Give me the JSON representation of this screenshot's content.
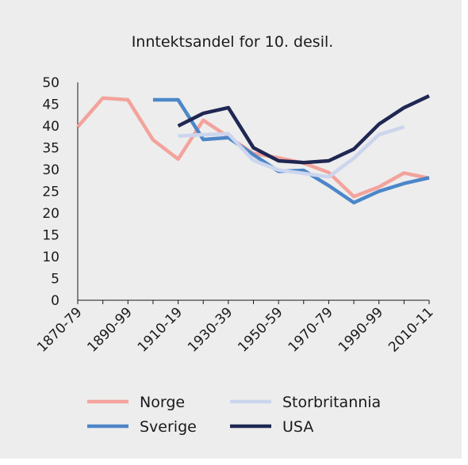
{
  "chart_data": {
    "type": "line",
    "title": "Inntektsandel for 10. desil.",
    "xlabel": "",
    "ylabel": "",
    "ylim": [
      0,
      50
    ],
    "yticks": [
      0,
      5,
      10,
      15,
      20,
      25,
      30,
      35,
      40,
      45,
      50
    ],
    "categories": [
      "1870-79",
      "1880-89",
      "1890-99",
      "1900-09",
      "1910-19",
      "1920-29",
      "1930-39",
      "1940-49",
      "1950-59",
      "1960-69",
      "1970-79",
      "1980-89",
      "1990-99",
      "2000-09",
      "2010-11"
    ],
    "xtick_labels": [
      "1870-79",
      "",
      "1890-99",
      "",
      "1910-19",
      "",
      "1930-39",
      "",
      "1950-59",
      "",
      "1970-79",
      "",
      "1990-99",
      "",
      "2010-11"
    ],
    "legend_position": "bottom",
    "grid": false,
    "series": [
      {
        "name": "Norge",
        "color": "#f3a39c",
        "values": [
          39.8,
          46.4,
          46.0,
          36.8,
          32.4,
          41.3,
          37.5,
          33.7,
          32.7,
          31.5,
          29.3,
          23.8,
          26.0,
          29.2,
          28.0
        ]
      },
      {
        "name": "Storbritannia",
        "color": "#ccd5ee",
        "values": [
          null,
          null,
          null,
          null,
          37.7,
          38.0,
          38.2,
          32.1,
          29.9,
          29.1,
          28.3,
          32.6,
          38.0,
          39.8,
          null
        ]
      },
      {
        "name": "Sverige",
        "color": "#4c86c8",
        "values": [
          null,
          null,
          null,
          46.0,
          46.0,
          36.9,
          37.3,
          33.4,
          29.6,
          29.8,
          26.3,
          22.4,
          25.0,
          26.8,
          28.1
        ]
      },
      {
        "name": "USA",
        "color": "#1f2752",
        "values": [
          null,
          null,
          null,
          null,
          40.0,
          42.9,
          44.2,
          35.0,
          32.0,
          31.6,
          32.0,
          34.7,
          40.4,
          44.2,
          46.9
        ]
      }
    ],
    "legend_order": [
      "Norge",
      "Storbritannia",
      "Sverige",
      "USA"
    ]
  }
}
